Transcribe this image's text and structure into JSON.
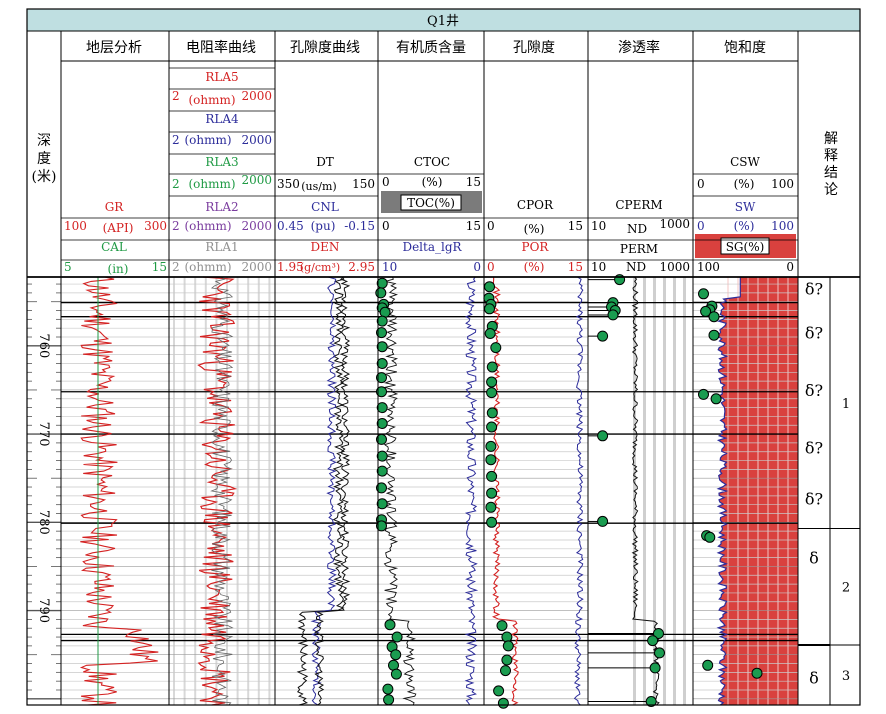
{
  "title": "Q1井",
  "depth_header": [
    "深",
    "度",
    "(米)"
  ],
  "conclusion_header": [
    "解",
    "释",
    "结",
    "论"
  ],
  "column_titles": [
    "地层分析",
    "电阻率曲线",
    "孔隙度曲线",
    "有机质含量",
    "孔隙度",
    "渗透率",
    "饱和度"
  ],
  "colors": {
    "title_bg": "#bfdfe1",
    "red": "#d42222",
    "blue": "#2c2c9a",
    "green": "#1f9a44",
    "purple": "#7a3c9e",
    "gray": "#909090",
    "grid": "#000000",
    "dot": "#1a9c50",
    "sat_fill": "#d9413e"
  },
  "headers": {
    "gr": {
      "name": "GR",
      "lo": "100",
      "unit": "(API)",
      "hi": "300"
    },
    "cal": {
      "name": "CAL",
      "lo": "5",
      "unit": "(in)",
      "hi": "15"
    },
    "rla5": {
      "name": "RLA5",
      "lo": "2",
      "unit": "(ohmm)",
      "hi": "2000"
    },
    "rla4": {
      "name": "RLA4",
      "lo": "2",
      "unit": "(ohmm)",
      "hi": "2000"
    },
    "rla3": {
      "name": "RLA3",
      "lo": "2",
      "unit": "(ohmm)",
      "hi": "2000"
    },
    "rla2": {
      "name": "RLA2",
      "lo": "2",
      "unit": "(ohmm)",
      "hi": "2000"
    },
    "rla1": {
      "name": "RLA1",
      "lo": "2",
      "unit": "(ohmm)",
      "hi": "2000"
    },
    "dt": {
      "name": "DT",
      "lo": "350",
      "unit": "(us/m)",
      "hi": "150"
    },
    "cnl": {
      "name": "CNL",
      "lo": "0.45",
      "unit": "(pu)",
      "hi": "-0.15"
    },
    "den": {
      "name": "DEN",
      "lo": "1.95",
      "unit": "(g/cm³)",
      "hi": "2.95"
    },
    "ctoc": {
      "name": "CTOC",
      "lo": "0",
      "unit": "(%)",
      "hi": "15"
    },
    "toc": {
      "name": "TOC(%)",
      "lo": "0",
      "hi": "15"
    },
    "dlgr": {
      "name": "Delta_lgR",
      "lo": "10",
      "hi": "0"
    },
    "cpor": {
      "name": "CPOR",
      "lo": "0",
      "unit": "(%)",
      "hi": "15"
    },
    "por": {
      "name": "POR",
      "lo": "0",
      "unit": "(%)",
      "hi": "15"
    },
    "cperm": {
      "name": "CPERM",
      "lo": "10",
      "unit": "ND",
      "hi": "1000"
    },
    "perm": {
      "name": "PERM",
      "lo": "10",
      "unit": "ND",
      "hi": "1000"
    },
    "csw": {
      "name": "CSW",
      "lo": "0",
      "unit": "(%)",
      "hi": "100"
    },
    "sw": {
      "name": "SW",
      "lo": "0",
      "unit": "(%)",
      "hi": "100"
    },
    "sg": {
      "name": "SG(%)",
      "lo": "100",
      "hi": "0"
    }
  },
  "chart_data": {
    "type": "well_log",
    "title": "Q1井",
    "depth_range": [
      752.2,
      800.7
    ],
    "depth_ticks": [
      760,
      770,
      780,
      790
    ],
    "conclusion_marks": [
      {
        "depth": 753.5,
        "label": "δ?"
      },
      {
        "depth": 758.5,
        "label": "δ?"
      },
      {
        "depth": 765.0,
        "label": "δ?"
      },
      {
        "depth": 771.5,
        "label": "δ?"
      },
      {
        "depth": 777.3,
        "label": "δ?"
      },
      {
        "depth": 784.0,
        "label": "δ"
      },
      {
        "depth": 797.6,
        "label": "δ"
      }
    ],
    "conclusion_zones": [
      {
        "from": 752.2,
        "to": 780.7,
        "label": "1"
      },
      {
        "from": 780.7,
        "to": 793.9,
        "label": "2"
      },
      {
        "from": 793.9,
        "to": 800.7,
        "label": "3"
      }
    ],
    "strata_lines": [
      755.1,
      756.7,
      765.2,
      770.0,
      780.1,
      792.7,
      793.4
    ],
    "toc_samples_depth": [
      752.9,
      754.0,
      755.3,
      755.7,
      756.2,
      757.2,
      758.5,
      760.1,
      762.0,
      763.6,
      765.2,
      767.0,
      768.8,
      770.6,
      772.5,
      774.2,
      776.1,
      777.9,
      779.7,
      780.4,
      791.6,
      793.0,
      794.1,
      795.0,
      796.2,
      797.2,
      798.9,
      800.1
    ],
    "toc_samples_value": [
      0.6,
      0.4,
      0.8,
      0.6,
      1.0,
      0.6,
      0.5,
      0.6,
      0.6,
      0.5,
      0.5,
      0.6,
      0.6,
      0.5,
      0.6,
      0.6,
      0.5,
      0.6,
      0.5,
      0.5,
      1.7,
      2.7,
      2.0,
      2.5,
      2.2,
      2.6,
      1.4,
      1.5
    ],
    "por_samples_depth": [
      753.3,
      754.6,
      755.3,
      755.8,
      757.8,
      758.6,
      760.2,
      762.4,
      764.1,
      765.3,
      767.6,
      769.2,
      771.4,
      772.9,
      774.8,
      776.7,
      778.3,
      780.0,
      791.7,
      793.0,
      794.0,
      795.6,
      796.8,
      799.1,
      800.5
    ],
    "por_samples_value": [
      0.8,
      0.7,
      1.0,
      0.8,
      1.2,
      0.9,
      1.7,
      1.2,
      1.1,
      1.1,
      1.2,
      1.1,
      1.0,
      1.0,
      1.1,
      1.1,
      1.0,
      1.1,
      2.6,
      3.3,
      3.5,
      3.3,
      3.1,
      2.1,
      2.8
    ],
    "perm_samples_depth": [
      752.5,
      755.1,
      755.6,
      756.0,
      756.5,
      758.9,
      770.2,
      779.9,
      792.6,
      793.4,
      794.8,
      796.5,
      800.3
    ],
    "perm_samples_value": [
      40,
      30,
      28,
      33,
      30,
      19,
      19,
      19,
      220,
      170,
      230,
      190,
      160
    ],
    "sw_samples_depth": [
      754.1,
      755.5,
      755.9,
      756.1,
      756.7,
      758.8,
      765.5,
      766.0,
      781.5,
      781.7,
      796.2,
      797.1
    ],
    "sw_samples_value": [
      10,
      18,
      16,
      12,
      20,
      20,
      10,
      22,
      13,
      16,
      14,
      61
    ]
  }
}
